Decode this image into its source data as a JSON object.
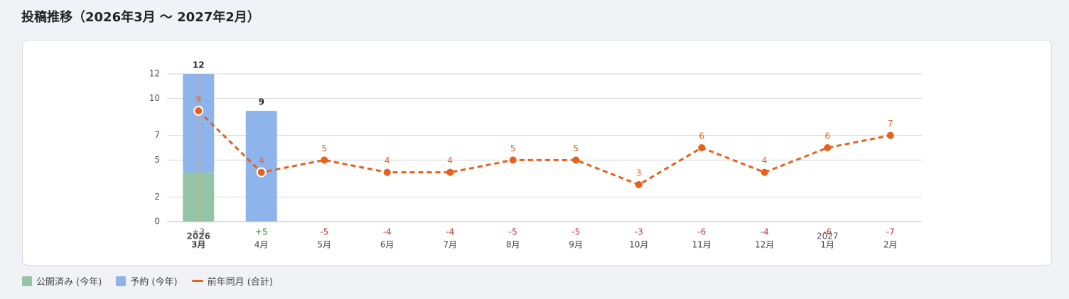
{
  "chart_data": {
    "type": "bar",
    "title": "投稿推移（2026年3月 〜 2027年2月）",
    "categories": [
      "3月",
      "4月",
      "5月",
      "6月",
      "7月",
      "8月",
      "9月",
      "10月",
      "11月",
      "12月",
      "1月",
      "2月"
    ],
    "years": [
      "2026",
      null,
      null,
      null,
      null,
      null,
      null,
      null,
      null,
      null,
      "2027",
      null
    ],
    "series": [
      {
        "name": "公開済み (今年)",
        "color": "#93c4a5",
        "values": [
          4,
          null,
          null,
          null,
          null,
          null,
          null,
          null,
          null,
          null,
          null,
          null
        ]
      },
      {
        "name": "予約 (今年)",
        "color": "#8fb4ec",
        "values": [
          8,
          9,
          null,
          null,
          null,
          null,
          null,
          null,
          null,
          null,
          null,
          null
        ]
      },
      {
        "name": "前年同月 (合計)",
        "color": "#e8601c",
        "type": "line",
        "values": [
          9,
          4,
          5,
          4,
          4,
          5,
          5,
          3,
          6,
          4,
          6,
          7
        ]
      }
    ],
    "totals": [
      12,
      9,
      null,
      null,
      null,
      null,
      null,
      null,
      null,
      null,
      null,
      null
    ],
    "diffs": [
      3,
      5,
      -5,
      -4,
      -4,
      -5,
      -5,
      -3,
      -6,
      -4,
      -6,
      -7
    ],
    "diff_labels": [
      "+3",
      "+5",
      "-5",
      "-4",
      "-4",
      "-5",
      "-5",
      "-3",
      "-6",
      "-4",
      "-6",
      "-7"
    ],
    "ylim": [
      0,
      12
    ],
    "yticks": [
      0,
      2,
      5,
      7,
      10,
      12
    ],
    "grid": true
  }
}
